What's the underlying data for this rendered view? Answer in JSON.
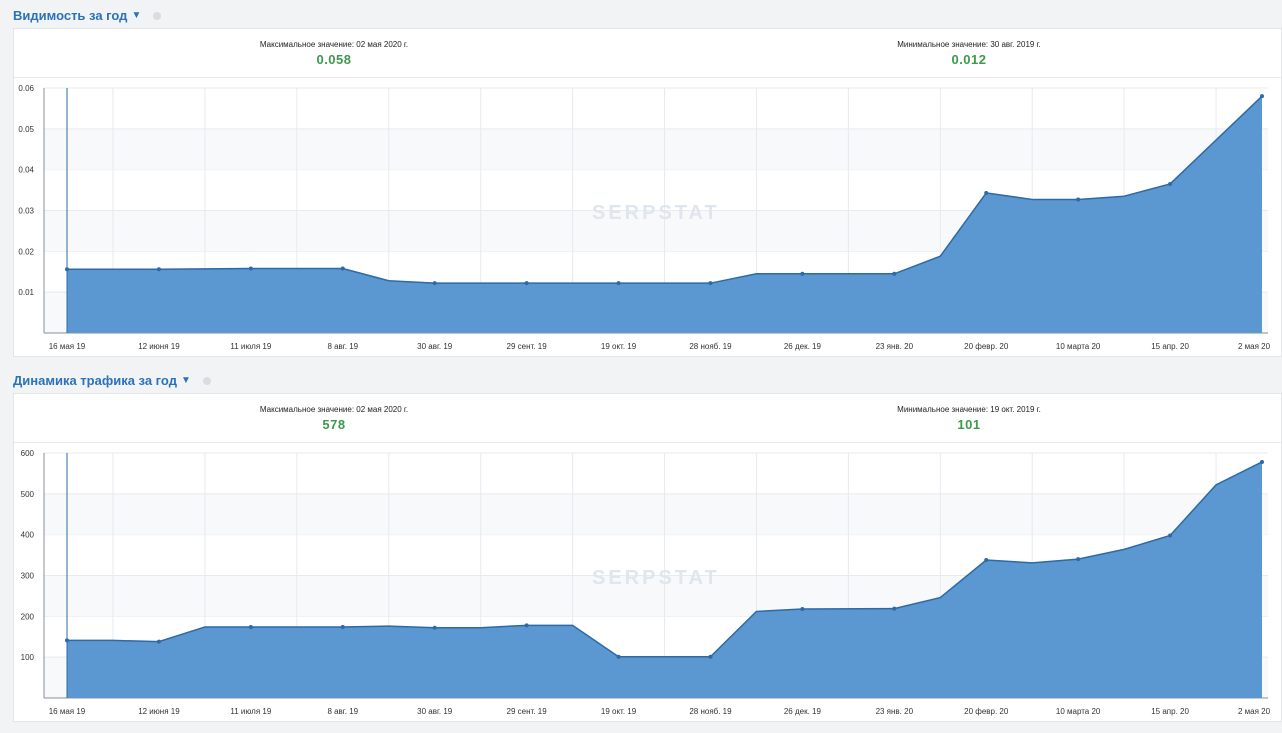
{
  "visibility": {
    "title": "Видимость за год",
    "max_label": "Максимальное значение: 02 мая 2020 г.",
    "max_value": "0.058",
    "min_label": "Минимальное значение: 30 авг. 2019 г.",
    "min_value": "0.012",
    "watermark": "SERPSTAT"
  },
  "traffic": {
    "title": "Динамика трафика за год",
    "max_label": "Максимальное значение: 02 мая 2020 г.",
    "max_value": "578",
    "min_label": "Минимальное значение: 19 окт. 2019 г.",
    "min_value": "101",
    "watermark": "SERPSTAT"
  },
  "colors": {
    "accent": "#2a73b8",
    "fill": "#5b97d0",
    "line": "#2c6aa8",
    "value_green": "#3c9a4c"
  },
  "chart_data": [
    {
      "type": "area",
      "ylim": [
        0,
        0.06
      ],
      "yticks": [
        "0.01",
        "0.02",
        "0.03",
        "0.04",
        "0.05",
        "0.06"
      ],
      "ytick_values": [
        0.01,
        0.02,
        0.03,
        0.04,
        0.05,
        0.06
      ],
      "xticks": [
        "16 мая 19",
        "12 июня 19",
        "11 июля 19",
        "8 авг. 19",
        "30 авг. 19",
        "29 сент. 19",
        "19 окт. 19",
        "28 нояб. 19",
        "26 дек. 19",
        "23 янв. 20",
        "20 февр. 20",
        "10 марта 20",
        "15 апр. 20",
        "2 мая 20"
      ],
      "x": [
        0,
        1,
        2,
        3,
        3.5,
        4,
        5,
        6,
        7,
        7.5,
        8,
        9,
        9.5,
        10,
        10.5,
        11,
        11.5,
        12,
        13
      ],
      "values": [
        0.0156,
        0.0156,
        0.0158,
        0.0158,
        0.0128,
        0.0122,
        0.0122,
        0.0122,
        0.0122,
        0.0145,
        0.0145,
        0.0145,
        0.0188,
        0.0343,
        0.0327,
        0.0327,
        0.0335,
        0.0365,
        0.058
      ]
    },
    {
      "type": "area",
      "ylim": [
        0,
        600
      ],
      "yticks": [
        "100",
        "200",
        "300",
        "400",
        "500",
        "600"
      ],
      "ytick_values": [
        100,
        200,
        300,
        400,
        500,
        600
      ],
      "xticks": [
        "16 мая 19",
        "12 июня 19",
        "11 июля 19",
        "8 авг. 19",
        "30 авг. 19",
        "29 сент. 19",
        "19 окт. 19",
        "28 нояб. 19",
        "26 дек. 19",
        "23 янв. 20",
        "20 февр. 20",
        "10 марта 20",
        "15 апр. 20",
        "2 мая 20"
      ],
      "x": [
        0,
        0.5,
        1,
        1.5,
        2,
        3,
        3.5,
        4,
        4.5,
        5,
        5.5,
        6,
        7,
        7.5,
        8,
        9,
        9.5,
        10,
        10.5,
        11,
        11.5,
        12,
        12.5,
        13
      ],
      "values": [
        141,
        141,
        138,
        174,
        174,
        174,
        176,
        172,
        172,
        178,
        178,
        101,
        101,
        212,
        218,
        219,
        246,
        338,
        331,
        340,
        364,
        398,
        522,
        578
      ]
    }
  ]
}
